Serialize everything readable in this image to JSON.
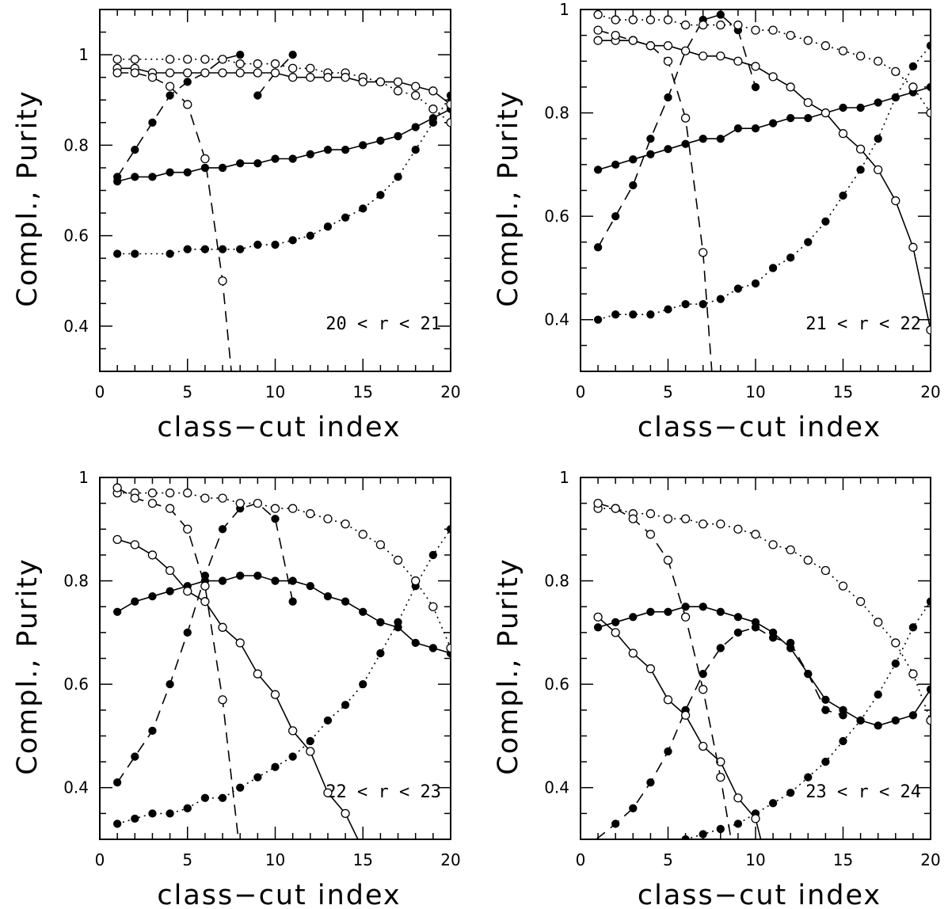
{
  "figure": {
    "background": "#ffffff",
    "ink": "#000000"
  },
  "chart_data": [
    {
      "type": "line",
      "xlabel": "class−cut index",
      "ylabel": "Compl., Purity",
      "annotation": "20 < r < 21",
      "xlim": [
        0,
        20
      ],
      "ylim": [
        0.3,
        1.1
      ],
      "xticks": [
        0,
        5,
        10,
        15,
        20
      ],
      "yticks": [
        0.4,
        0.6,
        0.8,
        1
      ],
      "grid": false,
      "series": [
        {
          "style": "dotted",
          "marker": "filled",
          "x": [
            1,
            2,
            4,
            5,
            6,
            7,
            8,
            9,
            10,
            11,
            12,
            13,
            14,
            15,
            16,
            17,
            18,
            19,
            20
          ],
          "y": [
            0.56,
            0.56,
            0.56,
            0.57,
            0.57,
            0.57,
            0.57,
            0.58,
            0.58,
            0.59,
            0.6,
            0.62,
            0.64,
            0.66,
            0.69,
            0.73,
            0.79,
            0.85,
            0.91
          ]
        },
        {
          "style": "solid",
          "marker": "filled",
          "x": [
            1,
            2,
            3,
            4,
            5,
            6,
            7,
            8,
            9,
            10,
            11,
            12,
            13,
            14,
            15,
            16,
            17,
            18,
            19,
            20
          ],
          "y": [
            0.72,
            0.73,
            0.73,
            0.74,
            0.74,
            0.75,
            0.75,
            0.76,
            0.76,
            0.77,
            0.77,
            0.78,
            0.79,
            0.79,
            0.8,
            0.81,
            0.82,
            0.84,
            0.86,
            0.88
          ]
        },
        {
          "style": "dashed",
          "marker": "filled",
          "x": [
            1,
            2,
            3,
            4,
            5,
            6,
            7,
            8
          ],
          "y": [
            0.73,
            0.79,
            0.85,
            0.91,
            0.94,
            0.96,
            0.99,
            1.0
          ]
        },
        {
          "style": "dashed",
          "marker": "filled",
          "x": [
            9,
            10,
            11
          ],
          "y": [
            0.91,
            0.96,
            1.0
          ]
        },
        {
          "style": "dotted",
          "marker": "open",
          "x": [
            1,
            2,
            4,
            5,
            6,
            7,
            8,
            9,
            10,
            11,
            12,
            13,
            14,
            15,
            16,
            17,
            18,
            19,
            20
          ],
          "y": [
            0.99,
            0.99,
            0.99,
            0.99,
            0.99,
            0.99,
            0.98,
            0.98,
            0.98,
            0.97,
            0.97,
            0.96,
            0.96,
            0.95,
            0.94,
            0.92,
            0.91,
            0.88,
            0.85
          ]
        },
        {
          "style": "solid",
          "marker": "open",
          "x": [
            1,
            2,
            3,
            4,
            5,
            6,
            7,
            8,
            9,
            10,
            11,
            12,
            13,
            14,
            15,
            16,
            17,
            18,
            19,
            20
          ],
          "y": [
            0.97,
            0.97,
            0.96,
            0.96,
            0.96,
            0.96,
            0.96,
            0.96,
            0.96,
            0.96,
            0.95,
            0.95,
            0.95,
            0.95,
            0.94,
            0.94,
            0.94,
            0.93,
            0.92,
            0.89
          ]
        },
        {
          "style": "dashed",
          "marker": "open",
          "x": [
            1,
            2,
            3,
            4,
            5,
            6,
            7,
            7.5
          ],
          "y": [
            0.96,
            0.96,
            0.95,
            0.93,
            0.89,
            0.77,
            0.5,
            0.3
          ]
        }
      ]
    },
    {
      "type": "line",
      "xlabel": "class−cut index",
      "ylabel": "Compl., Purity",
      "annotation": "21 < r < 22",
      "xlim": [
        0,
        20
      ],
      "ylim": [
        0.3,
        1.0
      ],
      "xticks": [
        0,
        5,
        10,
        15,
        20
      ],
      "yticks": [
        0.4,
        0.6,
        0.8,
        1
      ],
      "grid": false,
      "series": [
        {
          "style": "dotted",
          "marker": "filled",
          "x": [
            1,
            2,
            3,
            4,
            5,
            6,
            7,
            8,
            9,
            10,
            11,
            12,
            13,
            14,
            15,
            16,
            17,
            18,
            19,
            20
          ],
          "y": [
            0.4,
            0.41,
            0.41,
            0.41,
            0.42,
            0.43,
            0.43,
            0.44,
            0.46,
            0.47,
            0.5,
            0.52,
            0.55,
            0.59,
            0.64,
            0.69,
            0.75,
            0.83,
            0.89,
            0.93
          ]
        },
        {
          "style": "solid",
          "marker": "filled",
          "x": [
            1,
            2,
            3,
            4,
            5,
            6,
            7,
            8,
            9,
            10,
            11,
            12,
            13,
            14,
            15,
            16,
            17,
            18,
            19,
            20
          ],
          "y": [
            0.69,
            0.7,
            0.71,
            0.72,
            0.73,
            0.74,
            0.75,
            0.75,
            0.77,
            0.77,
            0.78,
            0.79,
            0.79,
            0.8,
            0.81,
            0.81,
            0.82,
            0.83,
            0.84,
            0.85
          ]
        },
        {
          "style": "dashed",
          "marker": "filled",
          "x": [
            1,
            2,
            3,
            4,
            5,
            6,
            7,
            8,
            9,
            10
          ],
          "y": [
            0.54,
            0.6,
            0.66,
            0.75,
            0.83,
            0.92,
            0.98,
            0.99,
            0.96,
            0.85
          ]
        },
        {
          "style": "dotted",
          "marker": "open",
          "x": [
            1,
            2,
            3,
            4,
            5,
            6,
            7,
            8,
            9,
            10,
            11,
            12,
            13,
            14,
            15,
            16,
            17,
            18,
            19,
            20
          ],
          "y": [
            0.99,
            0.98,
            0.98,
            0.98,
            0.98,
            0.97,
            0.97,
            0.97,
            0.97,
            0.96,
            0.96,
            0.95,
            0.94,
            0.93,
            0.92,
            0.91,
            0.9,
            0.88,
            0.85,
            0.8
          ]
        },
        {
          "style": "solid",
          "marker": "open",
          "x": [
            1,
            2,
            3,
            4,
            5,
            6,
            7,
            8,
            9,
            10,
            11,
            12,
            13,
            14,
            15,
            16,
            17,
            18,
            19,
            20
          ],
          "y": [
            0.94,
            0.94,
            0.94,
            0.93,
            0.93,
            0.92,
            0.91,
            0.91,
            0.9,
            0.89,
            0.87,
            0.85,
            0.82,
            0.8,
            0.76,
            0.73,
            0.69,
            0.63,
            0.54,
            0.38
          ]
        },
        {
          "style": "dashed",
          "marker": "open",
          "x": [
            1,
            2,
            3,
            4,
            5,
            6,
            7,
            7.5
          ],
          "y": [
            0.96,
            0.95,
            0.94,
            0.93,
            0.9,
            0.79,
            0.53,
            0.3
          ]
        }
      ]
    },
    {
      "type": "line",
      "xlabel": "class−cut index",
      "ylabel": "Compl., Purity",
      "annotation": "22 < r < 23",
      "xlim": [
        0,
        20
      ],
      "ylim": [
        0.3,
        1.0
      ],
      "xticks": [
        0,
        5,
        10,
        15,
        20
      ],
      "yticks": [
        0.4,
        0.6,
        0.8,
        1
      ],
      "grid": false,
      "series": [
        {
          "style": "dotted",
          "marker": "filled",
          "x": [
            1,
            2,
            3,
            4,
            5,
            6,
            7,
            8,
            9,
            10,
            11,
            12,
            13,
            14,
            15,
            16,
            17,
            18,
            19,
            20
          ],
          "y": [
            0.33,
            0.34,
            0.35,
            0.35,
            0.36,
            0.38,
            0.38,
            0.4,
            0.42,
            0.44,
            0.46,
            0.49,
            0.53,
            0.56,
            0.6,
            0.66,
            0.72,
            0.79,
            0.85,
            0.9
          ]
        },
        {
          "style": "solid",
          "marker": "filled",
          "x": [
            1,
            2,
            3,
            4,
            5,
            6,
            7,
            8,
            9,
            10,
            11,
            12,
            13,
            14,
            15,
            16,
            17,
            18,
            19,
            20
          ],
          "y": [
            0.74,
            0.76,
            0.77,
            0.78,
            0.79,
            0.8,
            0.8,
            0.81,
            0.81,
            0.8,
            0.8,
            0.79,
            0.77,
            0.76,
            0.74,
            0.72,
            0.71,
            0.68,
            0.67,
            0.66
          ]
        },
        {
          "style": "dashed",
          "marker": "filled",
          "x": [
            1,
            2,
            3,
            4,
            5,
            6,
            7,
            8,
            9,
            10,
            11
          ],
          "y": [
            0.41,
            0.46,
            0.51,
            0.6,
            0.7,
            0.81,
            0.9,
            0.94,
            0.95,
            0.92,
            0.76
          ]
        },
        {
          "style": "dotted",
          "marker": "open",
          "x": [
            1,
            2,
            3,
            4,
            5,
            6,
            7,
            8,
            9,
            10,
            11,
            12,
            13,
            14,
            15,
            16,
            17,
            18,
            19,
            20
          ],
          "y": [
            0.97,
            0.97,
            0.97,
            0.97,
            0.97,
            0.96,
            0.96,
            0.95,
            0.95,
            0.94,
            0.94,
            0.93,
            0.92,
            0.91,
            0.89,
            0.87,
            0.84,
            0.8,
            0.75,
            0.67
          ]
        },
        {
          "style": "solid",
          "marker": "open",
          "x": [
            1,
            2,
            3,
            4,
            5,
            6,
            7,
            8,
            9,
            10,
            11,
            12,
            13,
            14,
            15
          ],
          "y": [
            0.88,
            0.87,
            0.85,
            0.82,
            0.78,
            0.76,
            0.71,
            0.68,
            0.62,
            0.58,
            0.51,
            0.47,
            0.39,
            0.35,
            0.28
          ]
        },
        {
          "style": "dashed",
          "marker": "open",
          "x": [
            1,
            2,
            3,
            4,
            5,
            6,
            7,
            7.9
          ],
          "y": [
            0.98,
            0.96,
            0.95,
            0.94,
            0.9,
            0.79,
            0.57,
            0.3
          ]
        }
      ]
    },
    {
      "type": "line",
      "xlabel": "class−cut index",
      "ylabel": "Compl., Purity",
      "annotation": "23 < r < 24",
      "xlim": [
        0,
        20
      ],
      "ylim": [
        0.3,
        1.0
      ],
      "xticks": [
        0,
        5,
        10,
        15,
        20
      ],
      "yticks": [
        0.4,
        0.6,
        0.8,
        1
      ],
      "grid": false,
      "series": [
        {
          "style": "dotted",
          "marker": "filled",
          "x": [
            6,
            7,
            8,
            9,
            10,
            11,
            12,
            13,
            14,
            15,
            16,
            17,
            18,
            19,
            20
          ],
          "y": [
            0.3,
            0.31,
            0.32,
            0.33,
            0.35,
            0.37,
            0.39,
            0.42,
            0.45,
            0.49,
            0.53,
            0.58,
            0.64,
            0.71,
            0.76
          ]
        },
        {
          "style": "solid",
          "marker": "filled",
          "x": [
            1,
            2,
            3,
            4,
            5,
            6,
            7,
            8,
            9,
            10,
            11,
            12,
            13,
            14,
            15,
            16,
            17,
            18,
            19,
            20
          ],
          "y": [
            0.71,
            0.72,
            0.73,
            0.74,
            0.74,
            0.75,
            0.75,
            0.74,
            0.73,
            0.72,
            0.7,
            0.67,
            0.62,
            0.57,
            0.55,
            0.53,
            0.52,
            0.53,
            0.54,
            0.59
          ]
        },
        {
          "style": "dashed",
          "marker": "filled",
          "x": [
            0.9,
            2,
            3,
            4,
            5,
            6,
            7,
            8,
            9,
            10,
            11,
            12,
            13,
            14,
            15
          ],
          "y": [
            0.3,
            0.33,
            0.36,
            0.41,
            0.47,
            0.55,
            0.62,
            0.67,
            0.7,
            0.71,
            0.69,
            0.68,
            0.62,
            0.55,
            0.54
          ]
        },
        {
          "style": "dotted",
          "marker": "open",
          "x": [
            1,
            2,
            3,
            4,
            5,
            6,
            7,
            8,
            9,
            10,
            11,
            12,
            13,
            14,
            15,
            16,
            17,
            18,
            19,
            20
          ],
          "y": [
            0.94,
            0.94,
            0.93,
            0.93,
            0.92,
            0.92,
            0.91,
            0.91,
            0.9,
            0.89,
            0.87,
            0.86,
            0.84,
            0.82,
            0.79,
            0.76,
            0.72,
            0.68,
            0.62,
            0.53
          ]
        },
        {
          "style": "solid",
          "marker": "open",
          "x": [
            1,
            2,
            3,
            4,
            5,
            6,
            7,
            8,
            9,
            10,
            10.3
          ],
          "y": [
            0.73,
            0.7,
            0.66,
            0.63,
            0.57,
            0.54,
            0.48,
            0.45,
            0.38,
            0.34,
            0.3
          ]
        },
        {
          "style": "dashed",
          "marker": "open",
          "x": [
            1,
            2,
            3,
            4,
            5,
            6,
            7,
            8,
            8.6
          ],
          "y": [
            0.95,
            0.94,
            0.92,
            0.89,
            0.84,
            0.73,
            0.59,
            0.42,
            0.3
          ]
        }
      ]
    }
  ]
}
